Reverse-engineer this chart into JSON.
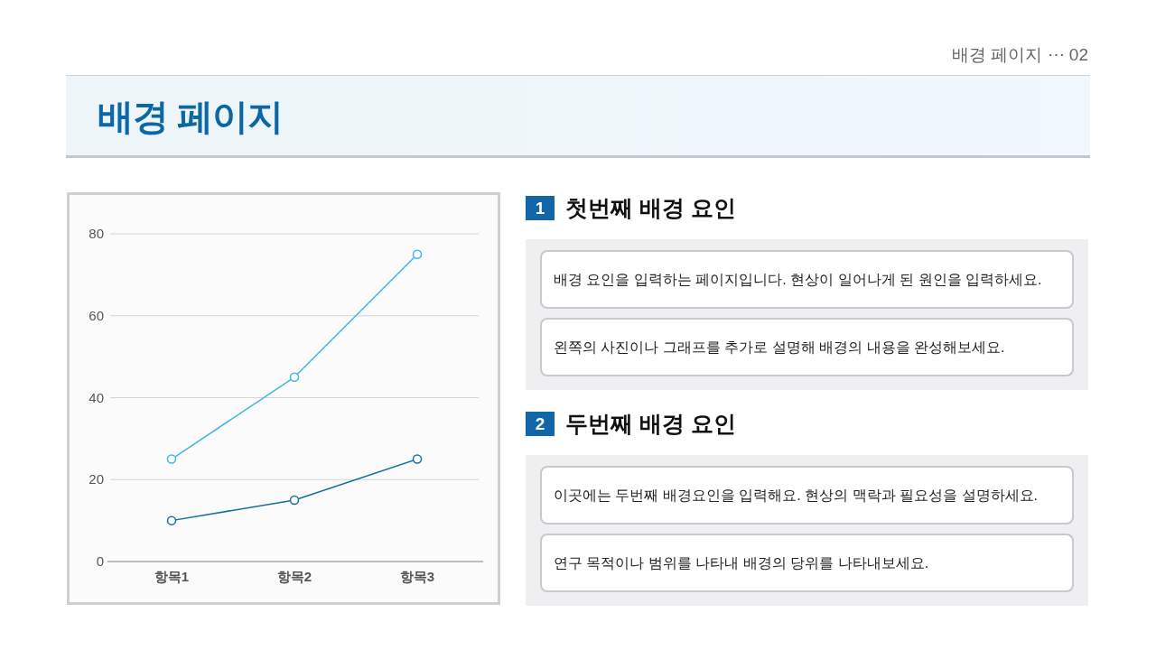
{
  "chart_data": {
    "type": "line",
    "title": "배경 페이지",
    "categories": [
      "항목1",
      "항목2",
      "항목3"
    ],
    "series": [
      {
        "color": "#41b4ea",
        "values": [
          25,
          45,
          75
        ]
      },
      {
        "color": "#13709e",
        "values": [
          10,
          15,
          25
        ]
      }
    ],
    "ylim": [
      0,
      80
    ],
    "yticks": [
      0,
      20,
      40,
      60,
      80
    ],
    "grid": "y",
    "marker": "circle",
    "line_style": "solid",
    "annotations": [
      "배경 페이지 ⋯ 02",
      "1",
      "첫번째 배경 요인",
      "배경 요인을 입력하는 페이지입니다. 현상이 일어나게 된 원인을 입력하세요.",
      "왼쪽의 사진이나 그래프를 추가로 설명해 배경의 내용을 완성해보세요.",
      "2",
      "두번째 배경 요인",
      "이곳에는 두번째 배경요인을 입력해요. 현상의 맥락과 필요성을 설명하세요.",
      "연구 목적이나 범위를 나타내 배경의 당위를 나타내보세요."
    ]
  }
}
